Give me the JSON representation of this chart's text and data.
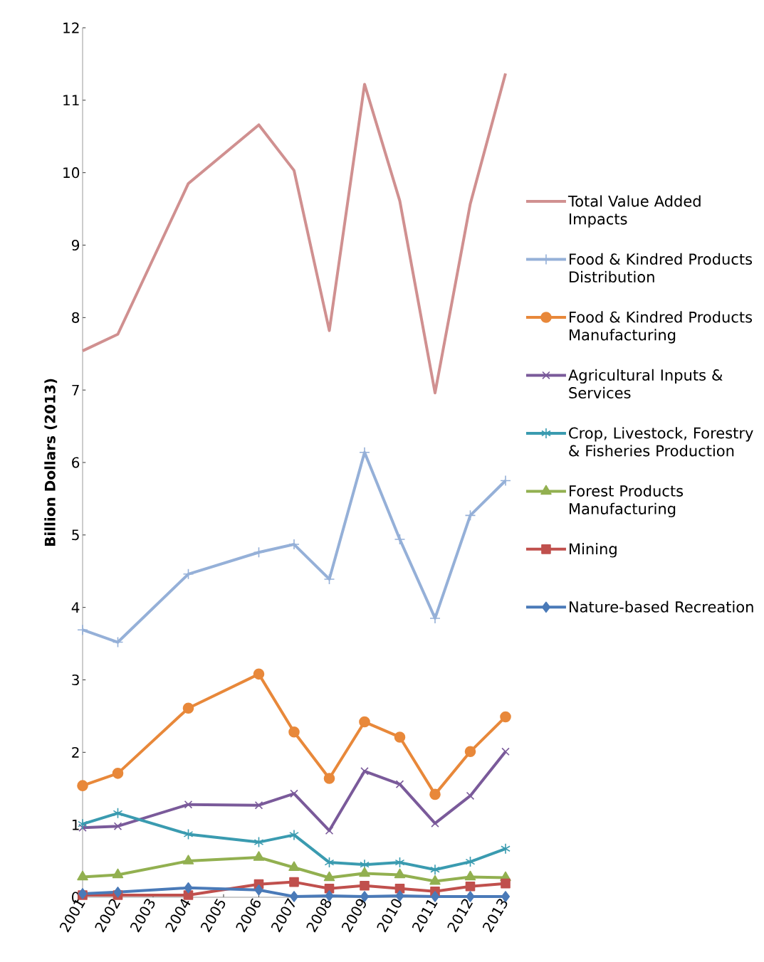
{
  "chart_data": {
    "type": "line",
    "ylabel": "Billion Dollars (2013)",
    "x": [
      2001,
      2002,
      2004,
      2006,
      2007,
      2008,
      2009,
      2010,
      2011,
      2012,
      2013
    ],
    "xlim": [
      2001,
      2013
    ],
    "xticks": [
      2001,
      2002,
      2003,
      2004,
      2005,
      2006,
      2007,
      2008,
      2009,
      2010,
      2011,
      2012,
      2013
    ],
    "ylim": [
      0,
      12
    ],
    "yticks": [
      0,
      1,
      2,
      3,
      4,
      5,
      6,
      7,
      8,
      9,
      10,
      11,
      12
    ],
    "grid": false,
    "legend": "right",
    "series": [
      {
        "name": "Total Value Added Impacts",
        "color": "#d09090",
        "marker": "none",
        "values": [
          7.54,
          7.77,
          9.85,
          10.66,
          10.03,
          7.82,
          11.22,
          9.61,
          6.96,
          9.57,
          11.37
        ]
      },
      {
        "name": "Food & Kindred Products Distribution",
        "color": "#95b0d8",
        "marker": "plus",
        "values": [
          3.69,
          3.52,
          4.46,
          4.76,
          4.87,
          4.39,
          6.14,
          4.94,
          3.85,
          5.27,
          5.75
        ]
      },
      {
        "name": "Food & Kindred Products Manufacturing",
        "color": "#e8883a",
        "marker": "circle",
        "values": [
          1.54,
          1.71,
          2.61,
          3.08,
          2.28,
          1.64,
          2.42,
          2.21,
          1.42,
          2.01,
          2.49
        ]
      },
      {
        "name": "Agricultural Inputs & Services",
        "color": "#7a5a9a",
        "marker": "x",
        "values": [
          0.96,
          0.98,
          1.28,
          1.27,
          1.43,
          0.92,
          1.74,
          1.56,
          1.02,
          1.4,
          2.01
        ]
      },
      {
        "name": "Crop, Livestock, Forestry & Fisheries Production",
        "color": "#3a9bb0",
        "marker": "cross",
        "values": [
          1.01,
          1.16,
          0.87,
          0.76,
          0.86,
          0.48,
          0.45,
          0.48,
          0.38,
          0.49,
          0.67
        ]
      },
      {
        "name": "Forest Products Manufacturing",
        "color": "#92b050",
        "marker": "triangle",
        "values": [
          0.28,
          0.31,
          0.5,
          0.55,
          0.41,
          0.27,
          0.33,
          0.31,
          0.22,
          0.28,
          0.27
        ]
      },
      {
        "name": "Mining",
        "color": "#c0504d",
        "marker": "square",
        "values": [
          0.03,
          0.03,
          0.03,
          0.18,
          0.21,
          0.12,
          0.16,
          0.12,
          0.08,
          0.15,
          0.19
        ]
      },
      {
        "name": "Nature-based Recreation",
        "color": "#4a7ab8",
        "marker": "diamond",
        "values": [
          0.05,
          0.07,
          0.13,
          0.1,
          0.01,
          0.02,
          0.01,
          0.02,
          0.01,
          0.01,
          0.01
        ]
      }
    ]
  }
}
